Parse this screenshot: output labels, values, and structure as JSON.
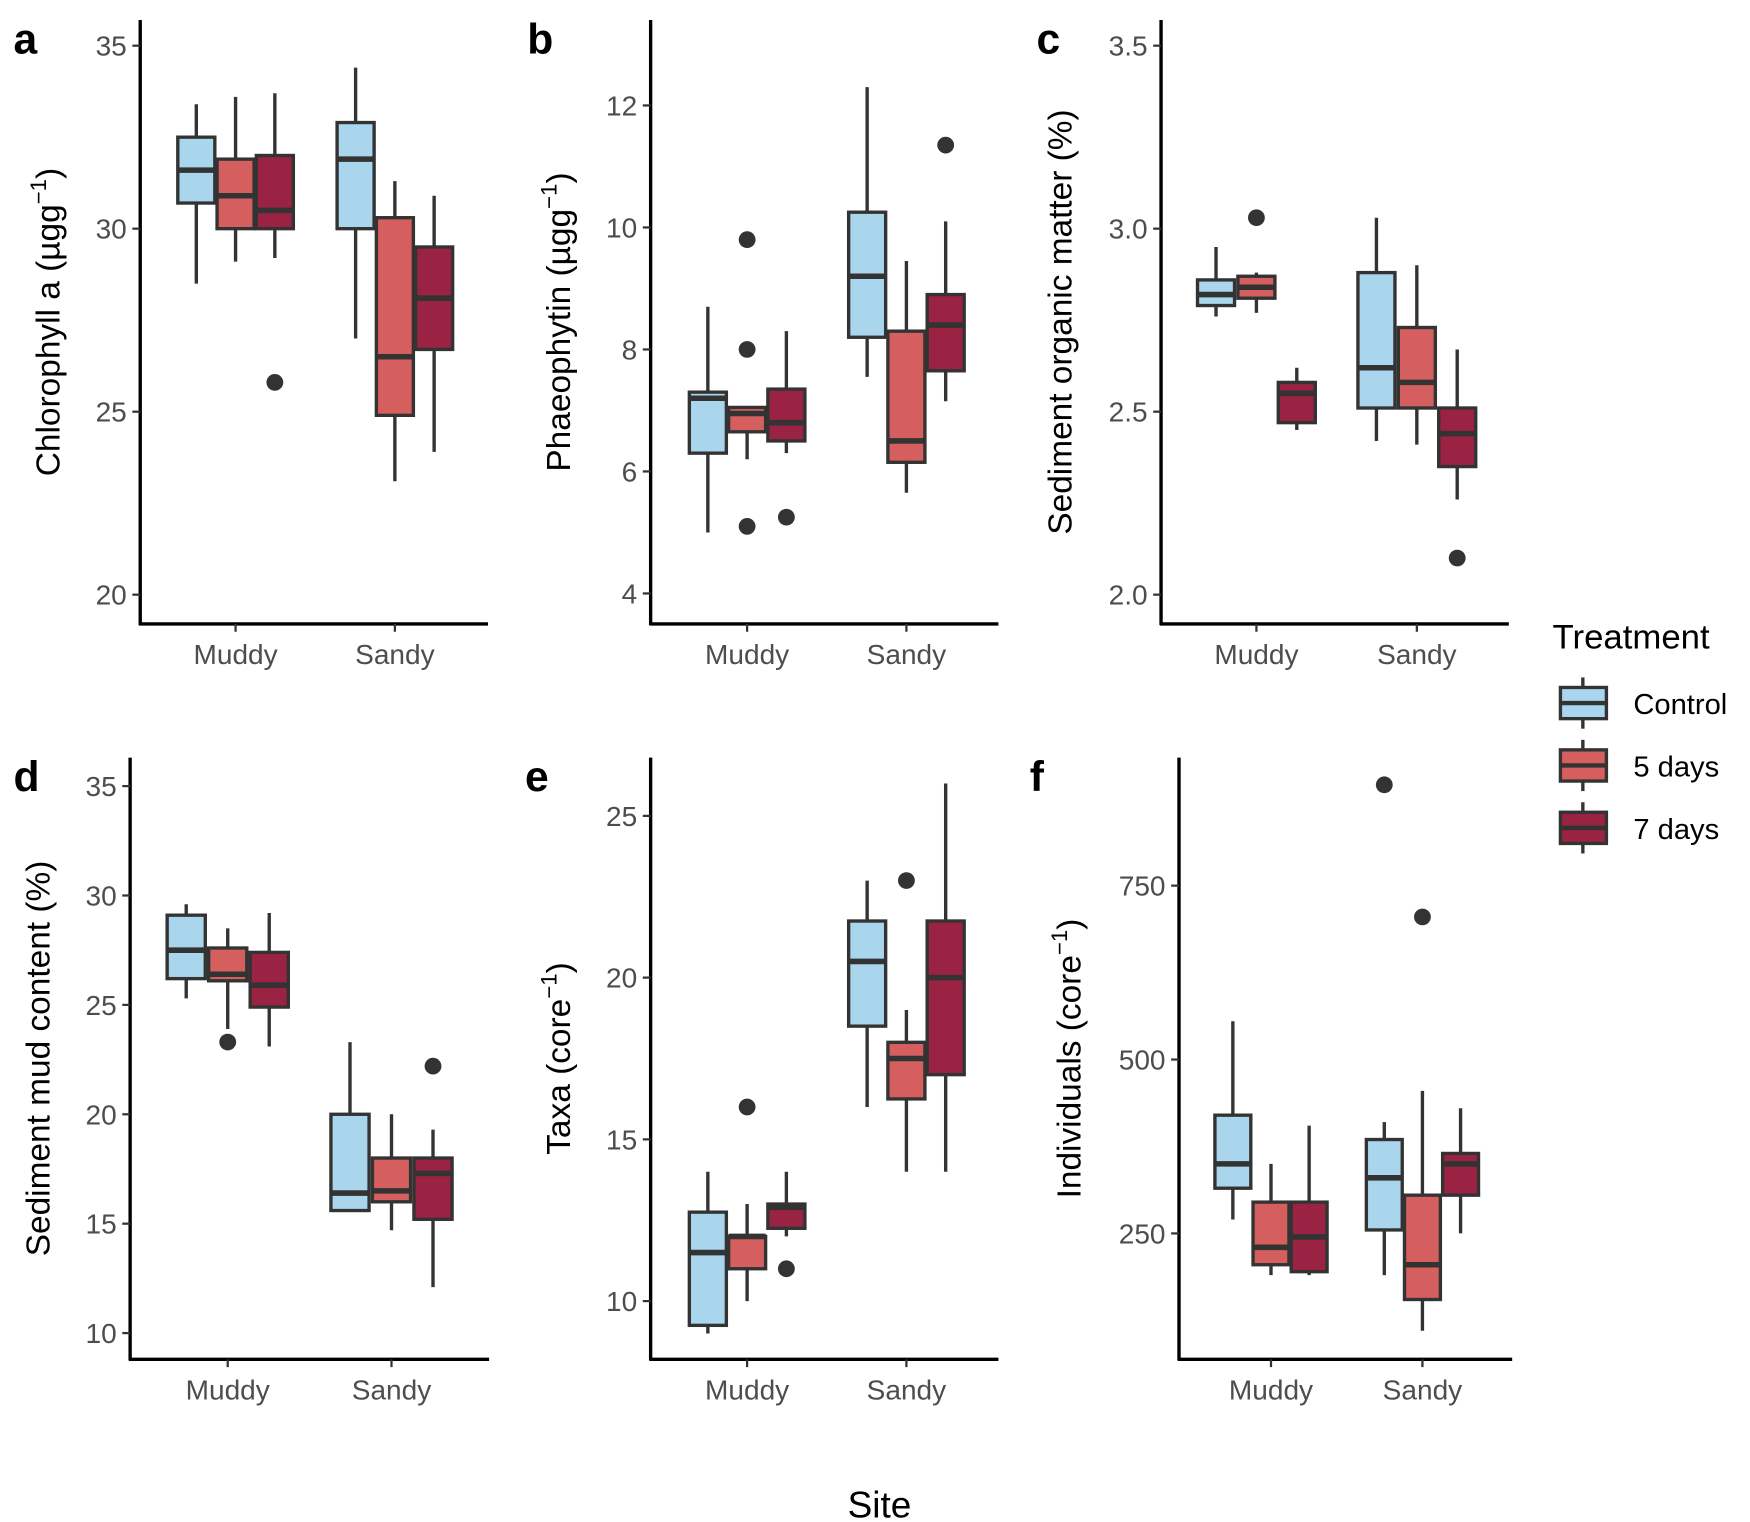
{
  "legend": {
    "title": "Treatment",
    "entries": [
      {
        "label": "Control",
        "color": "#a9d6ec"
      },
      {
        "label": "5 days",
        "color": "#d45f5e"
      },
      {
        "label": "7 days",
        "color": "#9a2343"
      }
    ],
    "placement": "right"
  },
  "outline_color": "#333333",
  "chart_data": [
    {
      "type": "boxplot",
      "panel_label": "a",
      "ylabel": {
        "text": "Chlorophyll a (µgg",
        "sup": "−1",
        "end": ")"
      },
      "xlabel": "Site",
      "categories": [
        "Muddy",
        "Sandy"
      ],
      "ylim": [
        19.2,
        35.7
      ],
      "yticks": [
        20,
        25,
        30,
        35
      ],
      "series": [
        {
          "name": "Control",
          "boxes": [
            {
              "whisker_low": 28.5,
              "q1": 30.7,
              "median": 31.6,
              "q3": 32.5,
              "whisker_high": 33.4,
              "outliers": []
            },
            {
              "whisker_low": 27.0,
              "q1": 30.0,
              "median": 31.9,
              "q3": 32.9,
              "whisker_high": 34.4,
              "outliers": []
            }
          ]
        },
        {
          "name": "5 days",
          "boxes": [
            {
              "whisker_low": 29.1,
              "q1": 30.0,
              "median": 30.9,
              "q3": 31.9,
              "whisker_high": 33.6,
              "outliers": []
            },
            {
              "whisker_low": 23.1,
              "q1": 24.9,
              "median": 26.5,
              "q3": 30.3,
              "whisker_high": 31.3,
              "outliers": []
            }
          ]
        },
        {
          "name": "7 days",
          "boxes": [
            {
              "whisker_low": 29.2,
              "q1": 30.0,
              "median": 30.5,
              "q3": 32.0,
              "whisker_high": 33.7,
              "outliers": [
                25.8
              ]
            },
            {
              "whisker_low": 23.9,
              "q1": 26.7,
              "median": 28.1,
              "q3": 29.5,
              "whisker_high": 30.9,
              "outliers": []
            }
          ]
        }
      ]
    },
    {
      "type": "boxplot",
      "panel_label": "b",
      "ylabel": {
        "text": "Phaeophytin (µgg",
        "sup": "−1",
        "end": ")"
      },
      "xlabel": "Site",
      "categories": [
        "Muddy",
        "Sandy"
      ],
      "ylim": [
        3.5,
        13.4
      ],
      "yticks": [
        4,
        6,
        8,
        10,
        12
      ],
      "series": [
        {
          "name": "Control",
          "boxes": [
            {
              "whisker_low": 5.0,
              "q1": 6.3,
              "median": 7.2,
              "q3": 7.3,
              "whisker_high": 8.7,
              "outliers": []
            },
            {
              "whisker_low": 7.55,
              "q1": 8.2,
              "median": 9.2,
              "q3": 10.25,
              "whisker_high": 12.3,
              "outliers": []
            }
          ]
        },
        {
          "name": "5 days",
          "boxes": [
            {
              "whisker_low": 6.2,
              "q1": 6.65,
              "median": 6.95,
              "q3": 7.05,
              "whisker_high": 7.05,
              "outliers": [
                9.8,
                8.0,
                5.1
              ]
            },
            {
              "whisker_low": 5.65,
              "q1": 6.15,
              "median": 6.5,
              "q3": 8.3,
              "whisker_high": 9.45,
              "outliers": []
            }
          ]
        },
        {
          "name": "7 days",
          "boxes": [
            {
              "whisker_low": 6.3,
              "q1": 6.5,
              "median": 6.8,
              "q3": 7.35,
              "whisker_high": 8.3,
              "outliers": [
                5.25
              ]
            },
            {
              "whisker_low": 7.15,
              "q1": 7.65,
              "median": 8.4,
              "q3": 8.9,
              "whisker_high": 10.1,
              "outliers": [
                11.35
              ]
            }
          ]
        }
      ]
    },
    {
      "type": "boxplot",
      "panel_label": "c",
      "ylabel": {
        "text": "Sediment organic matter (%)",
        "sup": "",
        "end": ""
      },
      "xlabel": "Site",
      "categories": [
        "Muddy",
        "Sandy"
      ],
      "ylim": [
        1.92,
        3.57
      ],
      "yticks": [
        2.0,
        2.5,
        3.0,
        3.5
      ],
      "ytick_labels": [
        "2.0",
        "2.5",
        "3.0",
        "3.5"
      ],
      "series": [
        {
          "name": "Control",
          "boxes": [
            {
              "whisker_low": 2.76,
              "q1": 2.79,
              "median": 2.82,
              "q3": 2.86,
              "whisker_high": 2.95,
              "outliers": []
            },
            {
              "whisker_low": 2.42,
              "q1": 2.51,
              "median": 2.62,
              "q3": 2.88,
              "whisker_high": 3.03,
              "outliers": []
            }
          ]
        },
        {
          "name": "5 days",
          "boxes": [
            {
              "whisker_low": 2.77,
              "q1": 2.81,
              "median": 2.84,
              "q3": 2.87,
              "whisker_high": 2.88,
              "outliers": [
                3.03
              ]
            },
            {
              "whisker_low": 2.41,
              "q1": 2.51,
              "median": 2.58,
              "q3": 2.73,
              "whisker_high": 2.9,
              "outliers": []
            }
          ]
        },
        {
          "name": "7 days",
          "boxes": [
            {
              "whisker_low": 2.45,
              "q1": 2.47,
              "median": 2.55,
              "q3": 2.58,
              "whisker_high": 2.62,
              "outliers": []
            },
            {
              "whisker_low": 2.26,
              "q1": 2.35,
              "median": 2.44,
              "q3": 2.51,
              "whisker_high": 2.67,
              "outliers": [
                2.1
              ]
            }
          ]
        }
      ]
    },
    {
      "type": "boxplot",
      "panel_label": "d",
      "ylabel": {
        "text": "Sediment mud content (%)",
        "sup": "",
        "end": ""
      },
      "xlabel": "Site",
      "categories": [
        "Muddy",
        "Sandy"
      ],
      "ylim": [
        8.8,
        36.3
      ],
      "yticks": [
        10,
        15,
        20,
        25,
        30,
        35
      ],
      "series": [
        {
          "name": "Control",
          "boxes": [
            {
              "whisker_low": 25.3,
              "q1": 26.2,
              "median": 27.5,
              "q3": 29.1,
              "whisker_high": 29.6,
              "outliers": []
            },
            {
              "whisker_low": 15.6,
              "q1": 15.6,
              "median": 16.4,
              "q3": 20.0,
              "whisker_high": 23.3,
              "outliers": []
            }
          ]
        },
        {
          "name": "5 days",
          "boxes": [
            {
              "whisker_low": 23.9,
              "q1": 26.1,
              "median": 26.4,
              "q3": 27.6,
              "whisker_high": 28.5,
              "outliers": [
                23.3
              ]
            },
            {
              "whisker_low": 14.7,
              "q1": 16.0,
              "median": 16.5,
              "q3": 18.0,
              "whisker_high": 20.0,
              "outliers": []
            }
          ]
        },
        {
          "name": "7 days",
          "boxes": [
            {
              "whisker_low": 23.1,
              "q1": 24.9,
              "median": 25.9,
              "q3": 27.4,
              "whisker_high": 29.2,
              "outliers": []
            },
            {
              "whisker_low": 12.1,
              "q1": 15.2,
              "median": 17.3,
              "q3": 18.0,
              "whisker_high": 19.3,
              "outliers": [
                22.2
              ]
            }
          ]
        }
      ]
    },
    {
      "type": "boxplot",
      "panel_label": "e",
      "ylabel": {
        "text": "Taxa (core",
        "sup": "−1",
        "end": ")"
      },
      "xlabel": "Site",
      "categories": [
        "Muddy",
        "Sandy"
      ],
      "ylim": [
        8.2,
        26.8
      ],
      "yticks": [
        10,
        15,
        20,
        25
      ],
      "series": [
        {
          "name": "Control",
          "boxes": [
            {
              "whisker_low": 9.0,
              "q1": 9.25,
              "median": 11.5,
              "q3": 12.75,
              "whisker_high": 14.0,
              "outliers": []
            },
            {
              "whisker_low": 16.0,
              "q1": 18.5,
              "median": 20.5,
              "q3": 21.75,
              "whisker_high": 23.0,
              "outliers": []
            }
          ]
        },
        {
          "name": "5 days",
          "boxes": [
            {
              "whisker_low": 10.0,
              "q1": 11.0,
              "median": 12.0,
              "q3": 12.0,
              "whisker_high": 13.0,
              "outliers": [
                16.0
              ]
            },
            {
              "whisker_low": 14.0,
              "q1": 16.25,
              "median": 17.5,
              "q3": 18.0,
              "whisker_high": 19.0,
              "outliers": [
                23.0
              ]
            }
          ]
        },
        {
          "name": "7 days",
          "boxes": [
            {
              "whisker_low": 12.0,
              "q1": 12.25,
              "median": 12.9,
              "q3": 13.0,
              "whisker_high": 14.0,
              "outliers": [
                11.0
              ]
            },
            {
              "whisker_low": 14.0,
              "q1": 17.0,
              "median": 20.0,
              "q3": 21.75,
              "whisker_high": 26.0,
              "outliers": []
            }
          ]
        }
      ]
    },
    {
      "type": "boxplot",
      "panel_label": "f",
      "ylabel": {
        "text": "Individuals (core",
        "sup": "−1",
        "end": ")"
      },
      "xlabel": "Site",
      "categories": [
        "Muddy",
        "Sandy"
      ],
      "ylim": [
        69,
        934
      ],
      "yticks": [
        250,
        500,
        750
      ],
      "series": [
        {
          "name": "Control",
          "boxes": [
            {
              "whisker_low": 270,
              "q1": 315,
              "median": 350,
              "q3": 420,
              "whisker_high": 555,
              "outliers": []
            },
            {
              "whisker_low": 190,
              "q1": 255,
              "median": 330,
              "q3": 385,
              "whisker_high": 410,
              "outliers": [
                895
              ]
            }
          ]
        },
        {
          "name": "5 days",
          "boxes": [
            {
              "whisker_low": 190,
              "q1": 205,
              "median": 230,
              "q3": 295,
              "whisker_high": 350,
              "outliers": []
            },
            {
              "whisker_low": 110,
              "q1": 155,
              "median": 205,
              "q3": 305,
              "whisker_high": 455,
              "outliers": [
                705
              ]
            }
          ]
        },
        {
          "name": "7 days",
          "boxes": [
            {
              "whisker_low": 190,
              "q1": 195,
              "median": 245,
              "q3": 295,
              "whisker_high": 405,
              "outliers": []
            },
            {
              "whisker_low": 250,
              "q1": 305,
              "median": 350,
              "q3": 365,
              "whisker_high": 430,
              "outliers": []
            }
          ]
        }
      ]
    }
  ],
  "shared_xlabel": "Site"
}
